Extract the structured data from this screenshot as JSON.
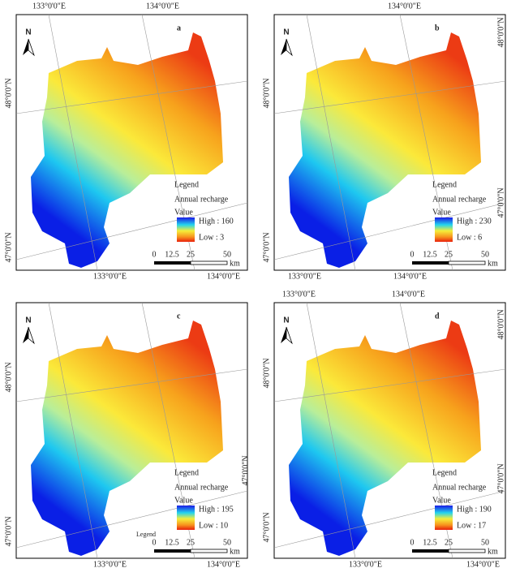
{
  "panels": [
    {
      "label": "a",
      "legend_title": "Legend",
      "legend_subtitle": "Annual recharge",
      "legend_value": "Value",
      "high": "High : 160",
      "low": "Low : 3",
      "scale": [
        "0",
        "12.5",
        "25",
        "50"
      ],
      "scale_unit": "km",
      "lon_top": [
        "133°0'0\"E",
        "134°0'0\"E"
      ],
      "lon_bottom": [
        "133°0'0\"E",
        "134°0'0\"E"
      ],
      "lat_left": [
        "48°0'0\"N",
        "47°0'0\"N"
      ],
      "lat_right": []
    },
    {
      "label": "b",
      "legend_title": "Legend",
      "legend_subtitle": "Annual  recharge",
      "legend_value": "Value",
      "high": "High : 230",
      "low": "Low : 6",
      "scale": [
        "0",
        "12.5",
        "25",
        "50"
      ],
      "scale_unit": "km",
      "lon_top": [
        "134°0'0\"E"
      ],
      "lon_bottom": [
        "133°0'0\"E",
        "134°0'0\"E"
      ],
      "lat_left": [
        "48°0'0\"N",
        "47°0'0\"N"
      ],
      "lat_right": [
        "48°0'0\"N",
        "47°0'0\"N"
      ]
    },
    {
      "label": "c",
      "legend_title": "Legend",
      "legend_subtitle": "Annual recharge",
      "legend_value": "Value",
      "high": "High : 195",
      "low": "Low : 10",
      "scale": [
        "0",
        "12.5",
        "25",
        "50"
      ],
      "scale_unit": "km",
      "extra_label": "Legend",
      "lon_top": [],
      "lon_bottom": [
        "133°0'0\"E",
        "134°0'0\"E"
      ],
      "lat_left": [
        "48°0'0\"N",
        "47°0'0\"N"
      ],
      "lat_right": [
        "47°0'0\"N"
      ]
    },
    {
      "label": "d",
      "legend_title": "Legend",
      "legend_subtitle": "Annual recharge",
      "legend_value": "Value",
      "high": "High : 190",
      "low": "Low : 17",
      "scale": [
        "0",
        "12.5",
        "25",
        "50"
      ],
      "scale_unit": "km",
      "lon_top": [
        "133°0'0\"E",
        "134°0'0\"E"
      ],
      "lon_bottom": [
        "133°0'0\"E",
        "134°0'0\"E"
      ],
      "lat_left": [
        "48°0'0\"N",
        "47°0'0\"N"
      ],
      "lat_right": [
        "48°0'0\"N",
        "47°0'0\"N"
      ]
    }
  ]
}
